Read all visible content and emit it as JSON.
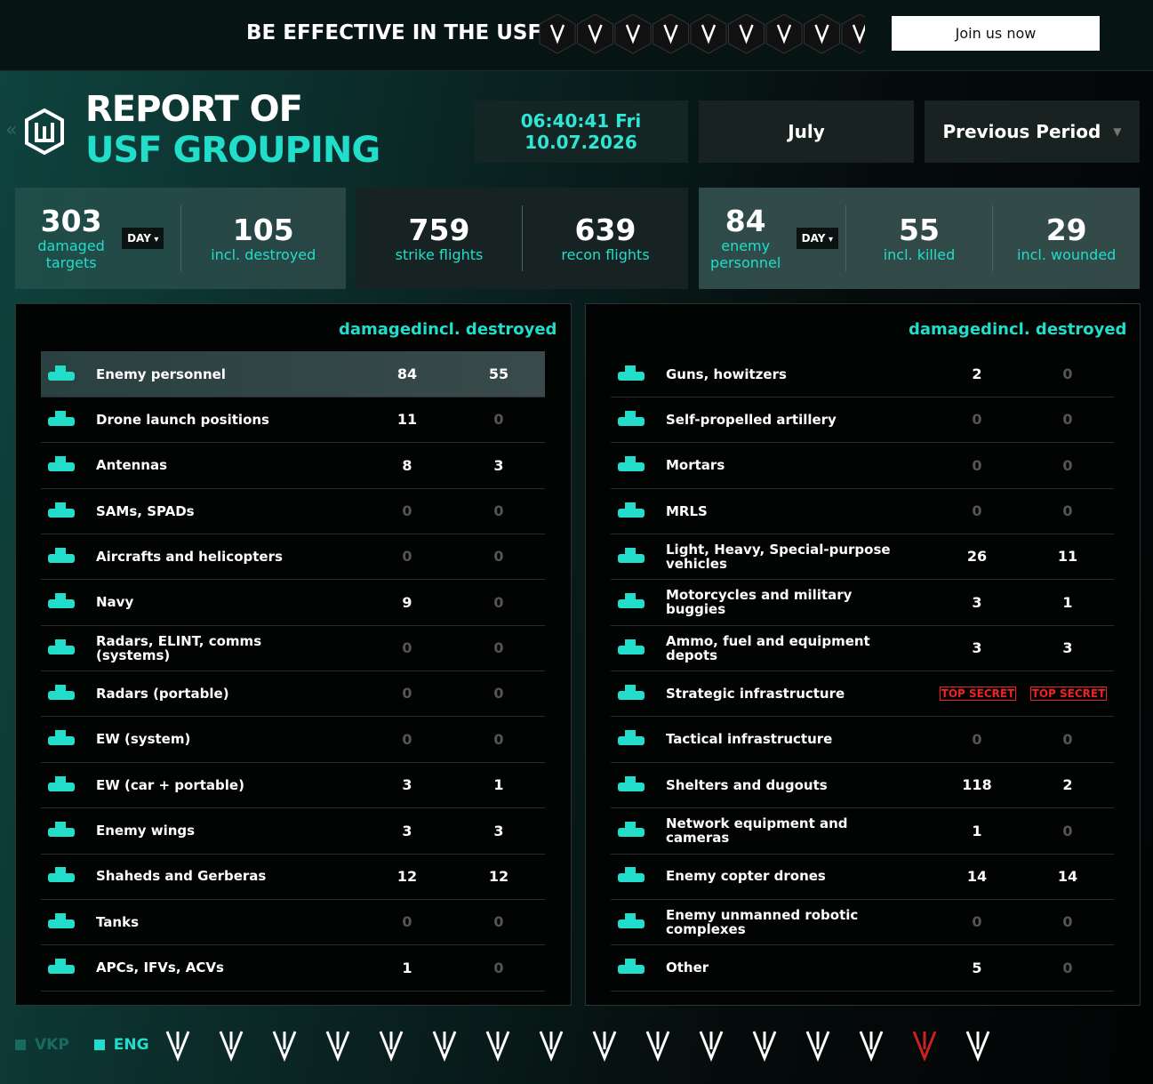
{
  "banner": {
    "title": "BE EFFECTIVE IN THE USF",
    "button": "Join us now"
  },
  "header": {
    "title_line1": "REPORT OF",
    "title_line2": "USF GROUPING",
    "time": "06:40:41 Fri",
    "date": "10.07.2026",
    "month": "July",
    "period": "Previous Period"
  },
  "summary": [
    {
      "items": [
        {
          "value": 303,
          "label": "damaged targets",
          "toggle": "DAY"
        },
        {
          "value": 105,
          "label": "incl. destroyed"
        }
      ]
    },
    {
      "items": [
        {
          "value": 759,
          "label": "strike flights"
        },
        {
          "value": 639,
          "label": "recon flights"
        }
      ]
    },
    {
      "items": [
        {
          "value": 84,
          "label": "enemy personnel",
          "toggle": "DAY"
        },
        {
          "value": 55,
          "label": "incl. killed"
        },
        {
          "value": 29,
          "label": "incl. wounded"
        }
      ]
    }
  ],
  "tables": [
    {
      "headers": [
        "damaged",
        "incl. destroyed"
      ],
      "rows": [
        {
          "label": "Enemy personnel",
          "damaged": 84,
          "destroyed": 55
        },
        {
          "label": "Drone launch positions",
          "damaged": 11,
          "destroyed": 0
        },
        {
          "label": "Antennas",
          "damaged": 8,
          "destroyed": 3
        },
        {
          "label": "SAMs, SPADs",
          "damaged": 0,
          "destroyed": 0
        },
        {
          "label": "Aircrafts and helicopters",
          "damaged": 0,
          "destroyed": 0
        },
        {
          "label": "Navy",
          "damaged": 9,
          "destroyed": 0
        },
        {
          "label": "Radars, ELINT, comms (systems)",
          "damaged": 0,
          "destroyed": 0
        },
        {
          "label": "Radars (portable)",
          "damaged": 0,
          "destroyed": 0
        },
        {
          "label": "EW (system)",
          "damaged": 0,
          "destroyed": 0
        },
        {
          "label": "EW (car + portable)",
          "damaged": 3,
          "destroyed": 1
        },
        {
          "label": "Enemy wings",
          "damaged": 3,
          "destroyed": 3
        },
        {
          "label": "Shaheds and Gerberas",
          "damaged": 12,
          "destroyed": 12
        },
        {
          "label": "Tanks",
          "damaged": 0,
          "destroyed": 0
        },
        {
          "label": "APCs, IFVs, ACVs",
          "damaged": 1,
          "destroyed": 0
        }
      ]
    },
    {
      "headers": [
        "damaged",
        "incl. destroyed"
      ],
      "rows": [
        {
          "label": "Guns, howitzers",
          "damaged": 2,
          "destroyed": 0
        },
        {
          "label": "Self-propelled artillery",
          "damaged": 0,
          "destroyed": 0
        },
        {
          "label": "Mortars",
          "damaged": 0,
          "destroyed": 0
        },
        {
          "label": "MRLS",
          "damaged": 0,
          "destroyed": 0
        },
        {
          "label": "Light, Heavy, Special-purpose vehicles",
          "damaged": 26,
          "destroyed": 11
        },
        {
          "label": "Motorcycles and military buggies",
          "damaged": 3,
          "destroyed": 1
        },
        {
          "label": "Ammo, fuel and equipment depots",
          "damaged": 3,
          "destroyed": 3
        },
        {
          "label": "Strategic infrastructure",
          "damaged": "TOP SECRET",
          "destroyed": "TOP SECRET"
        },
        {
          "label": "Tactical infrastructure",
          "damaged": 0,
          "destroyed": 0
        },
        {
          "label": "Shelters and dugouts",
          "damaged": 118,
          "destroyed": 2
        },
        {
          "label": "Network equipment and cameras",
          "damaged": 1,
          "destroyed": 0
        },
        {
          "label": "Enemy copter drones",
          "damaged": 14,
          "destroyed": 14
        },
        {
          "label": "Enemy unmanned robotic complexes",
          "damaged": 0,
          "destroyed": 0
        },
        {
          "label": "Other",
          "damaged": 5,
          "destroyed": 0
        }
      ]
    }
  ],
  "footer": {
    "languages": [
      "VKP",
      "ENG"
    ]
  }
}
